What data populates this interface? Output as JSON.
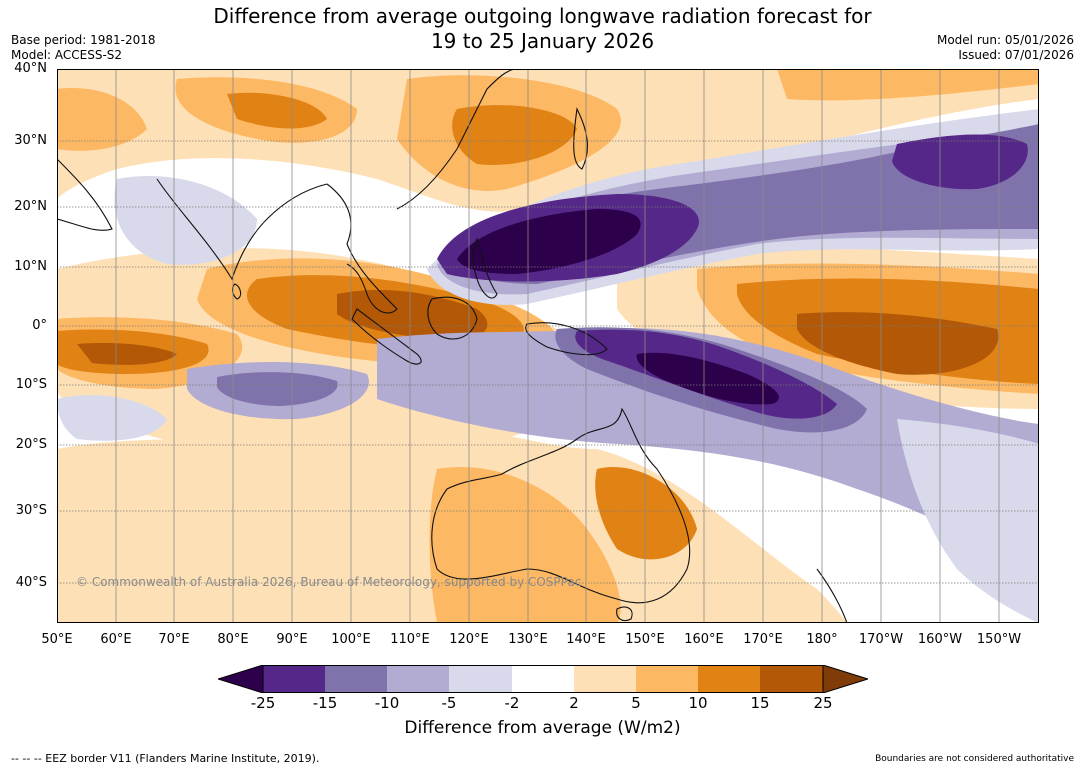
{
  "title": {
    "line1": "Difference from average outgoing longwave radiation forecast for",
    "line2": "19 to 25 January 2026"
  },
  "meta_left": {
    "base_period": "Base period: 1981-2018",
    "model": "Model: ACCESS-S2"
  },
  "meta_right": {
    "model_run": "Model run: 05/01/2026",
    "issued": "Issued: 07/01/2026"
  },
  "map": {
    "lat_labels": [
      "40°N",
      "30°N",
      "20°N",
      "10°N",
      "0°",
      "10°S",
      "20°S",
      "30°S",
      "40°S"
    ],
    "lon_labels": [
      "50°E",
      "60°E",
      "70°E",
      "80°E",
      "90°E",
      "100°E",
      "110°E",
      "120°E",
      "130°E",
      "140°E",
      "150°E",
      "160°E",
      "170°E",
      "180°",
      "170°W",
      "160°W",
      "150°W"
    ],
    "copyright": "© Commonwealth of Australia 2026, Bureau of Meteorology, supported by COSPPac"
  },
  "colorbar": {
    "ticks": [
      "-25",
      "-15",
      "-10",
      "-5",
      "-2",
      "2",
      "5",
      "10",
      "15",
      "25"
    ],
    "colors": [
      "#2d004b",
      "#542788",
      "#8073ac",
      "#b2abd2",
      "#d8daeb",
      "#ffffff",
      "#fee0b6",
      "#fdb863",
      "#e08214",
      "#b35806",
      "#7f3b08"
    ],
    "label": "Difference from average (W/m2)"
  },
  "footer": {
    "left": "--  --  -- EEZ border V11 (Flanders Marine Institute, 2019).",
    "right": "Boundaries are not considered authoritative"
  }
}
